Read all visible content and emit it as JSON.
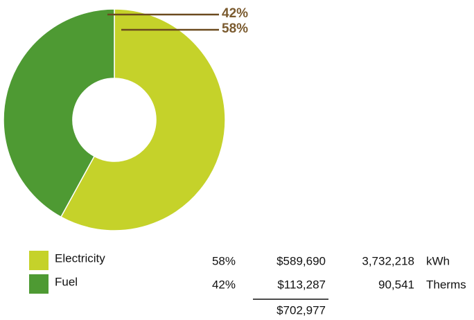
{
  "chart_data": {
    "type": "donut",
    "categories": [
      "Electricity",
      "Fuel"
    ],
    "values": [
      58,
      42
    ],
    "value_labels": [
      "58%",
      "42%"
    ],
    "colors": [
      "#c5d22a",
      "#4e9a33"
    ]
  },
  "table": {
    "rows": [
      [
        "$589,690",
        "3,732,218",
        "kWh"
      ],
      [
        "$113,287",
        "90,541",
        "Therms"
      ]
    ],
    "total": "$702,977"
  }
}
